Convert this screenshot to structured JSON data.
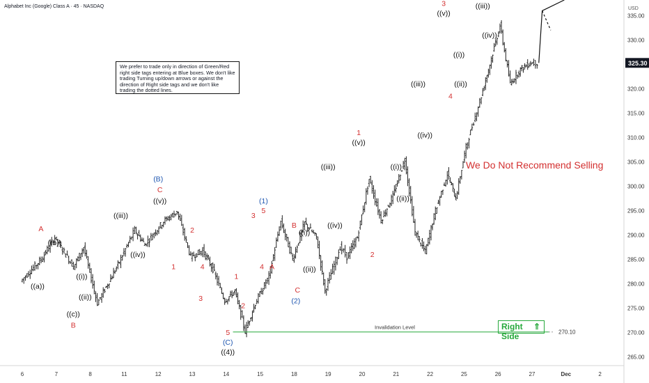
{
  "header": {
    "title": "Alphabet Inc (Google) Class A · 45 · NASDAQ"
  },
  "note": {
    "text": "We prefer to trade only in direction of Green/Red right side tags entering at Blue boxes. We don't like trading Turning up/down arrows or against the direction of Right side tags and we don't like trading the dotted lines."
  },
  "recommend": {
    "text": "We Do Not Recommend Selling"
  },
  "right_side": {
    "label": "Right Side",
    "arrow": "⇑",
    "arrow_icon": "up-arrow-icon",
    "color": "#26a83b"
  },
  "invalidation": {
    "label": "Invalidation Level",
    "price_label": "270.10"
  },
  "price_axis": {
    "unit": "USD",
    "current_price": "325.30"
  },
  "colors": {
    "wave_red": "#d32f2f",
    "wave_blue": "#1e56b0",
    "invalidation_green": "#26a83b",
    "candle": "#222222"
  },
  "chart_data": {
    "type": "line",
    "title": "Alphabet Inc (Google) Class A · 45 · NASDAQ",
    "xlabel": "",
    "ylabel": "",
    "x_ticks": [
      "6",
      "7",
      "8",
      "11",
      "12",
      "13",
      "14",
      "15",
      "18",
      "19",
      "20",
      "21",
      "22",
      "25",
      "26",
      "27",
      "Dec",
      "2"
    ],
    "y_ticks": [
      "335.00",
      "330.00",
      "325.00",
      "320.00",
      "315.00",
      "310.00",
      "305.00",
      "300.00",
      "295.00",
      "290.00",
      "285.00",
      "280.00",
      "275.00",
      "270.00",
      "265.00"
    ],
    "ylim": [
      263.2,
      338.2
    ],
    "grid": false,
    "invalidation_level": 270.1,
    "last_price": 325.3,
    "series": [
      {
        "x": [
          0,
          0.6,
          1.0,
          1.55,
          1.85,
          2.25,
          2.6,
          2.9,
          3.35,
          3.65,
          4.2,
          4.6,
          5.0,
          5.35,
          5.65,
          6.0,
          6.3,
          6.6,
          6.9,
          7.3,
          7.65,
          8.0,
          8.35,
          8.7,
          8.95,
          9.4,
          9.6,
          9.9,
          10.25,
          10.6,
          10.95,
          11.3,
          11.6,
          11.9,
          12.2,
          12.55,
          12.8,
          13.1,
          13.55,
          13.8,
          14.1,
          14.4,
          14.7,
          15.0,
          15.2
        ],
        "values": [
          280.5,
          285.0,
          289.5,
          283.5,
          287.5,
          276.0,
          280.5,
          284.5,
          291.0,
          288.0,
          292.8,
          294.8,
          285.5,
          286.8,
          283.0,
          276.5,
          278.5,
          270.2,
          276.0,
          281.5,
          292.8,
          285.0,
          292.5,
          289.5,
          278.5,
          287.5,
          285.5,
          289.5,
          301.5,
          293.0,
          298.0,
          305.5,
          290.5,
          286.5,
          295.0,
          302.5,
          297.5,
          308.0,
          318.5,
          325.0,
          333.0,
          321.0,
          324.0,
          325.3,
          325.3
        ]
      }
    ],
    "projection": {
      "x": [
        15.2,
        15.3,
        15.95
      ],
      "values": [
        325.3,
        336.0,
        338.2
      ]
    },
    "projection_dotted": {
      "x": [
        15.3,
        15.55
      ],
      "values": [
        336.0,
        332.0
      ]
    },
    "annotations": [
      {
        "text": "A",
        "x": 0.55,
        "y": 290.8,
        "color": "red"
      },
      {
        "text": "((b))",
        "x": 0.95,
        "y": 287.9,
        "color": "black"
      },
      {
        "text": "((a))",
        "x": 0.45,
        "y": 279.0,
        "color": "black"
      },
      {
        "text": "((c))",
        "x": 1.5,
        "y": 273.3,
        "color": "black"
      },
      {
        "text": "B",
        "x": 1.5,
        "y": 271.0,
        "color": "red"
      },
      {
        "text": "((i))",
        "x": 1.75,
        "y": 281.0,
        "color": "black"
      },
      {
        "text": "((ii))",
        "x": 1.85,
        "y": 276.8,
        "color": "black"
      },
      {
        "text": "((iii))",
        "x": 2.9,
        "y": 293.5,
        "color": "black"
      },
      {
        "text": "((iv))",
        "x": 3.4,
        "y": 285.5,
        "color": "black"
      },
      {
        "text": "(B)",
        "x": 4.0,
        "y": 301.0,
        "color": "blue"
      },
      {
        "text": "C",
        "x": 4.05,
        "y": 298.8,
        "color": "red"
      },
      {
        "text": "((v))",
        "x": 4.05,
        "y": 296.5,
        "color": "black"
      },
      {
        "text": "2",
        "x": 5.0,
        "y": 290.5,
        "color": "red"
      },
      {
        "text": "1",
        "x": 4.45,
        "y": 283.0,
        "color": "red"
      },
      {
        "text": "4",
        "x": 5.3,
        "y": 283.0,
        "color": "red"
      },
      {
        "text": "3",
        "x": 5.25,
        "y": 276.5,
        "color": "red"
      },
      {
        "text": "1",
        "x": 6.3,
        "y": 281.0,
        "color": "red"
      },
      {
        "text": "2",
        "x": 6.5,
        "y": 275.0,
        "color": "red"
      },
      {
        "text": "5",
        "x": 6.05,
        "y": 269.5,
        "color": "red"
      },
      {
        "text": "(C)",
        "x": 6.05,
        "y": 267.5,
        "color": "blue"
      },
      {
        "text": "((4))",
        "x": 6.05,
        "y": 265.5,
        "color": "black"
      },
      {
        "text": "(1)",
        "x": 7.1,
        "y": 296.5,
        "color": "blue"
      },
      {
        "text": "5",
        "x": 7.1,
        "y": 294.5,
        "color": "red"
      },
      {
        "text": "3",
        "x": 6.8,
        "y": 293.5,
        "color": "red"
      },
      {
        "text": "4",
        "x": 7.05,
        "y": 283.0,
        "color": "red"
      },
      {
        "text": "A",
        "x": 7.35,
        "y": 283.0,
        "color": "red"
      },
      {
        "text": "B",
        "x": 8.0,
        "y": 291.5,
        "color": "red"
      },
      {
        "text": "((i))",
        "x": 8.3,
        "y": 290.0,
        "color": "black"
      },
      {
        "text": "((ii))",
        "x": 8.45,
        "y": 282.5,
        "color": "black"
      },
      {
        "text": "C",
        "x": 8.1,
        "y": 278.2,
        "color": "red"
      },
      {
        "text": "(2)",
        "x": 8.05,
        "y": 276.0,
        "color": "blue"
      },
      {
        "text": "((iii))",
        "x": 9.0,
        "y": 303.5,
        "color": "black"
      },
      {
        "text": "((iv))",
        "x": 9.2,
        "y": 291.5,
        "color": "black"
      },
      {
        "text": "1",
        "x": 9.9,
        "y": 310.5,
        "color": "red"
      },
      {
        "text": "((v))",
        "x": 9.9,
        "y": 308.5,
        "color": "black"
      },
      {
        "text": "2",
        "x": 10.3,
        "y": 285.5,
        "color": "red"
      },
      {
        "text": "((i))",
        "x": 11.0,
        "y": 303.5,
        "color": "black"
      },
      {
        "text": "((ii))",
        "x": 11.2,
        "y": 297.0,
        "color": "black"
      },
      {
        "text": "((iii))",
        "x": 11.65,
        "y": 320.5,
        "color": "black"
      },
      {
        "text": "((iv))",
        "x": 11.85,
        "y": 310.0,
        "color": "black"
      },
      {
        "text": "3",
        "x": 12.4,
        "y": 337.0,
        "color": "red"
      },
      {
        "text": "((v))",
        "x": 12.4,
        "y": 335.0,
        "color": "black"
      },
      {
        "text": "((i))",
        "x": 12.85,
        "y": 326.5,
        "color": "black"
      },
      {
        "text": "((ii))",
        "x": 12.9,
        "y": 320.5,
        "color": "black"
      },
      {
        "text": "4",
        "x": 12.6,
        "y": 318.0,
        "color": "red"
      },
      {
        "text": "((iii))",
        "x": 13.55,
        "y": 336.5,
        "color": "black"
      },
      {
        "text": "((iv))",
        "x": 13.75,
        "y": 330.5,
        "color": "black"
      }
    ]
  }
}
